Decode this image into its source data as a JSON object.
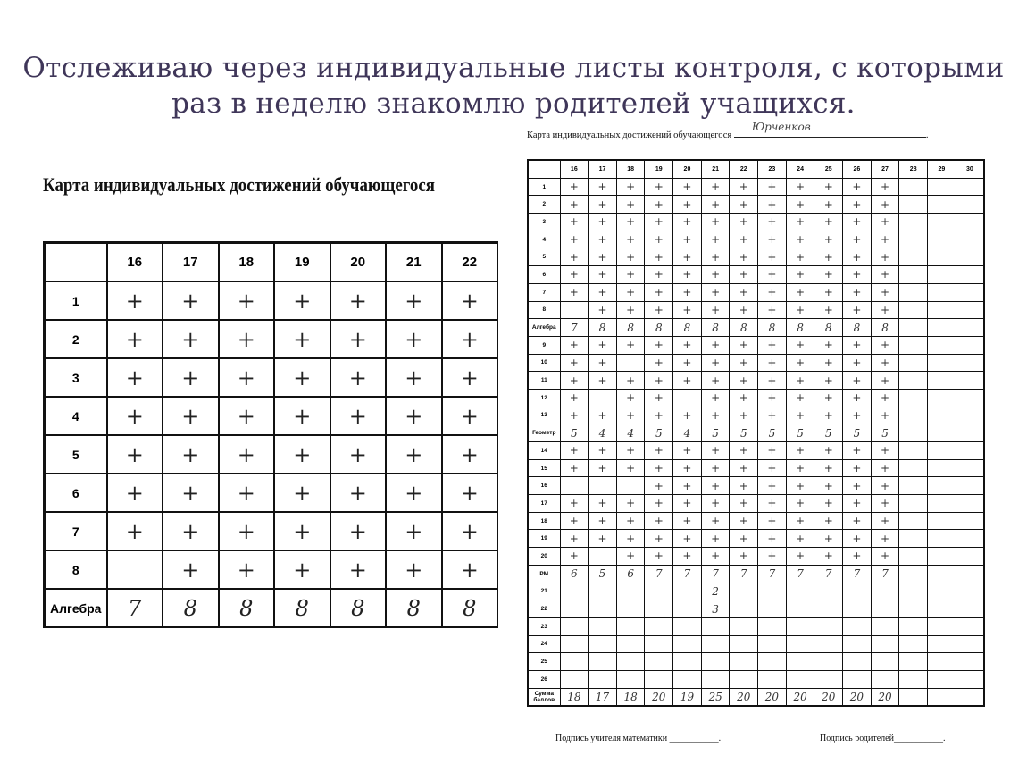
{
  "slide_title": "Отслеживаю через индивидуальные листы контроля, с которыми раз в неделю знакомлю родителей учащихся.",
  "left_doc": {
    "caption": "Карта индивидуальных достижений обучающегося",
    "columns": [
      "16",
      "17",
      "18",
      "19",
      "20",
      "21",
      "22"
    ],
    "rows": [
      {
        "label": "1",
        "cells": [
          "+",
          "+",
          "+",
          "+",
          "+",
          "+",
          "+"
        ]
      },
      {
        "label": "2",
        "cells": [
          "+",
          "+",
          "+",
          "+",
          "+",
          "+",
          "+"
        ]
      },
      {
        "label": "3",
        "cells": [
          "+",
          "+",
          "+",
          "+",
          "+",
          "+",
          "+"
        ]
      },
      {
        "label": "4",
        "cells": [
          "+",
          "+",
          "+",
          "+",
          "+",
          "+",
          "+"
        ]
      },
      {
        "label": "5",
        "cells": [
          "+",
          "+",
          "+",
          "+",
          "+",
          "+",
          "+"
        ]
      },
      {
        "label": "6",
        "cells": [
          "+",
          "+",
          "+",
          "+",
          "+",
          "+",
          "+"
        ]
      },
      {
        "label": "7",
        "cells": [
          "+",
          "+",
          "+",
          "+",
          "+",
          "+",
          "+"
        ]
      },
      {
        "label": "8",
        "cells": [
          "",
          "+",
          "+",
          "+",
          "+",
          "+",
          "+"
        ]
      },
      {
        "label": "Алгебра",
        "cells": [
          "7",
          "8",
          "8",
          "8",
          "8",
          "8",
          "8"
        ]
      }
    ]
  },
  "right_doc": {
    "caption": "Карта индивидуальных достижений обучающегося",
    "student_name": "Юрченков",
    "columns": [
      "16",
      "17",
      "18",
      "19",
      "20",
      "21",
      "22",
      "23",
      "24",
      "25",
      "26",
      "27",
      "28",
      "29",
      "30"
    ],
    "rows": [
      {
        "label": "1",
        "cells": [
          "+",
          "+",
          "+",
          "+",
          "+",
          "+",
          "+",
          "+",
          "+",
          "+",
          "+",
          "+"
        ]
      },
      {
        "label": "2",
        "cells": [
          "+",
          "+",
          "+",
          "+",
          "+",
          "+",
          "+",
          "+",
          "+",
          "+",
          "+",
          "+"
        ]
      },
      {
        "label": "3",
        "cells": [
          "+",
          "+",
          "+",
          "+",
          "+",
          "+",
          "+",
          "+",
          "+",
          "+",
          "+",
          "+"
        ]
      },
      {
        "label": "4",
        "cells": [
          "+",
          "+",
          "+",
          "+",
          "+",
          "+",
          "+",
          "+",
          "+",
          "+",
          "+",
          "+"
        ]
      },
      {
        "label": "5",
        "cells": [
          "+",
          "+",
          "+",
          "+",
          "+",
          "+",
          "+",
          "+",
          "+",
          "+",
          "+",
          "+"
        ]
      },
      {
        "label": "6",
        "cells": [
          "+",
          "+",
          "+",
          "+",
          "+",
          "+",
          "+",
          "+",
          "+",
          "+",
          "+",
          "+"
        ]
      },
      {
        "label": "7",
        "cells": [
          "+",
          "+",
          "+",
          "+",
          "+",
          "+",
          "+",
          "+",
          "+",
          "+",
          "+",
          "+"
        ]
      },
      {
        "label": "8",
        "cells": [
          "",
          "+",
          "+",
          "+",
          "+",
          "+",
          "+",
          "+",
          "+",
          "+",
          "+",
          "+"
        ]
      },
      {
        "label": "Алгебра",
        "cells": [
          "7",
          "8",
          "8",
          "8",
          "8",
          "8",
          "8",
          "8",
          "8",
          "8",
          "8",
          "8"
        ]
      },
      {
        "label": "9",
        "cells": [
          "+",
          "+",
          "+",
          "+",
          "+",
          "+",
          "+",
          "+",
          "+",
          "+",
          "+",
          "+"
        ]
      },
      {
        "label": "10",
        "cells": [
          "+",
          "+",
          "",
          "+",
          "+",
          "+",
          "+",
          "+",
          "+",
          "+",
          "+",
          "+"
        ]
      },
      {
        "label": "11",
        "cells": [
          "+",
          "+",
          "+",
          "+",
          "+",
          "+",
          "+",
          "+",
          "+",
          "+",
          "+",
          "+"
        ]
      },
      {
        "label": "12",
        "cells": [
          "+",
          "",
          "+",
          "+",
          "",
          "+",
          "+",
          "+",
          "+",
          "+",
          "+",
          "+"
        ]
      },
      {
        "label": "13",
        "cells": [
          "+",
          "+",
          "+",
          "+",
          "+",
          "+",
          "+",
          "+",
          "+",
          "+",
          "+",
          "+"
        ]
      },
      {
        "label": "Геометр",
        "cells": [
          "5",
          "4",
          "4",
          "5",
          "4",
          "5",
          "5",
          "5",
          "5",
          "5",
          "5",
          "5"
        ]
      },
      {
        "label": "14",
        "cells": [
          "+",
          "+",
          "+",
          "+",
          "+",
          "+",
          "+",
          "+",
          "+",
          "+",
          "+",
          "+"
        ]
      },
      {
        "label": "15",
        "cells": [
          "+",
          "+",
          "+",
          "+",
          "+",
          "+",
          "+",
          "+",
          "+",
          "+",
          "+",
          "+"
        ]
      },
      {
        "label": "16",
        "cells": [
          "",
          "",
          "",
          "+",
          "+",
          "+",
          "+",
          "+",
          "+",
          "+",
          "+",
          "+"
        ]
      },
      {
        "label": "17",
        "cells": [
          "+",
          "+",
          "+",
          "+",
          "+",
          "+",
          "+",
          "+",
          "+",
          "+",
          "+",
          "+"
        ]
      },
      {
        "label": "18",
        "cells": [
          "+",
          "+",
          "+",
          "+",
          "+",
          "+",
          "+",
          "+",
          "+",
          "+",
          "+",
          "+"
        ]
      },
      {
        "label": "19",
        "cells": [
          "+",
          "+",
          "+",
          "+",
          "+",
          "+",
          "+",
          "+",
          "+",
          "+",
          "+",
          "+"
        ]
      },
      {
        "label": "20",
        "cells": [
          "+",
          "",
          "+",
          "+",
          "+",
          "+",
          "+",
          "+",
          "+",
          "+",
          "+",
          "+"
        ]
      },
      {
        "label": "РМ",
        "cells": [
          "6",
          "5",
          "6",
          "7",
          "7",
          "7",
          "7",
          "7",
          "7",
          "7",
          "7",
          "7"
        ]
      },
      {
        "label": "21",
        "cells": [
          "",
          "",
          "",
          "",
          "",
          "2"
        ]
      },
      {
        "label": "22",
        "cells": [
          "",
          "",
          "",
          "",
          "",
          "3"
        ]
      },
      {
        "label": "23",
        "cells": []
      },
      {
        "label": "24",
        "cells": []
      },
      {
        "label": "25",
        "cells": []
      },
      {
        "label": "26",
        "cells": []
      },
      {
        "label": "Сумма баллов",
        "cells": [
          "18",
          "17",
          "18",
          "20",
          "19",
          "25",
          "20",
          "20",
          "20",
          "20",
          "20",
          "20"
        ]
      }
    ],
    "teacher_signature_label": "Подпись учителя математики ___________.",
    "parent_signature_label": "Подпись родителей___________."
  }
}
